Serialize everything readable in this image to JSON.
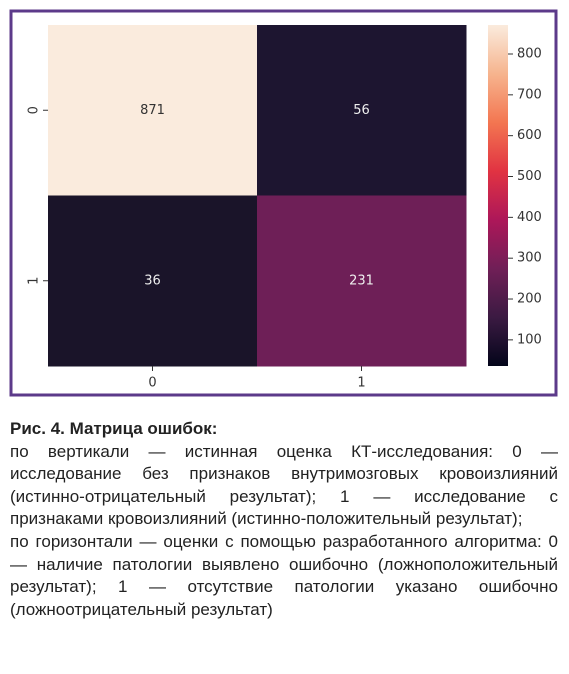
{
  "chart_data": {
    "type": "heatmap",
    "x_categories": [
      "0",
      "1"
    ],
    "y_categories": [
      "0",
      "1"
    ],
    "values": [
      [
        871,
        56
      ],
      [
        36,
        231
      ]
    ],
    "cell_colors": [
      [
        "#faebdd",
        "#1d1530"
      ],
      [
        "#1a1429",
        "#6e1f57"
      ]
    ],
    "colorbar_lim": [
      36,
      871
    ],
    "colorbar_ticks": [
      100,
      200,
      300,
      400,
      500,
      600,
      700,
      800
    ],
    "colorbar_colors": [
      "#03051a",
      "#3b1a42",
      "#701f57",
      "#ad1759",
      "#e13342",
      "#f37651",
      "#f6b48e",
      "#faebdd"
    ],
    "frame_color": "#5c3a8a"
  },
  "caption": {
    "title": "Рис. 4. Матрица ошибок:",
    "paragraphs": [
      "по вертикали — истинная оценка КТ-исследования: 0 — исследование без признаков внутримозговых кровоизлияний (истинно-отрицательный результат); 1 — исследование с признаками кровоизлияний (истинно-положительный результат);",
      "по горизонтали — оценки с помощью разработанного алгоритма: 0 — наличие патологии выявлено ошибочно (ложноположительный результат); 1 — отсутствие патологии указано ошибочно (ложноотрицательный результат)"
    ]
  }
}
